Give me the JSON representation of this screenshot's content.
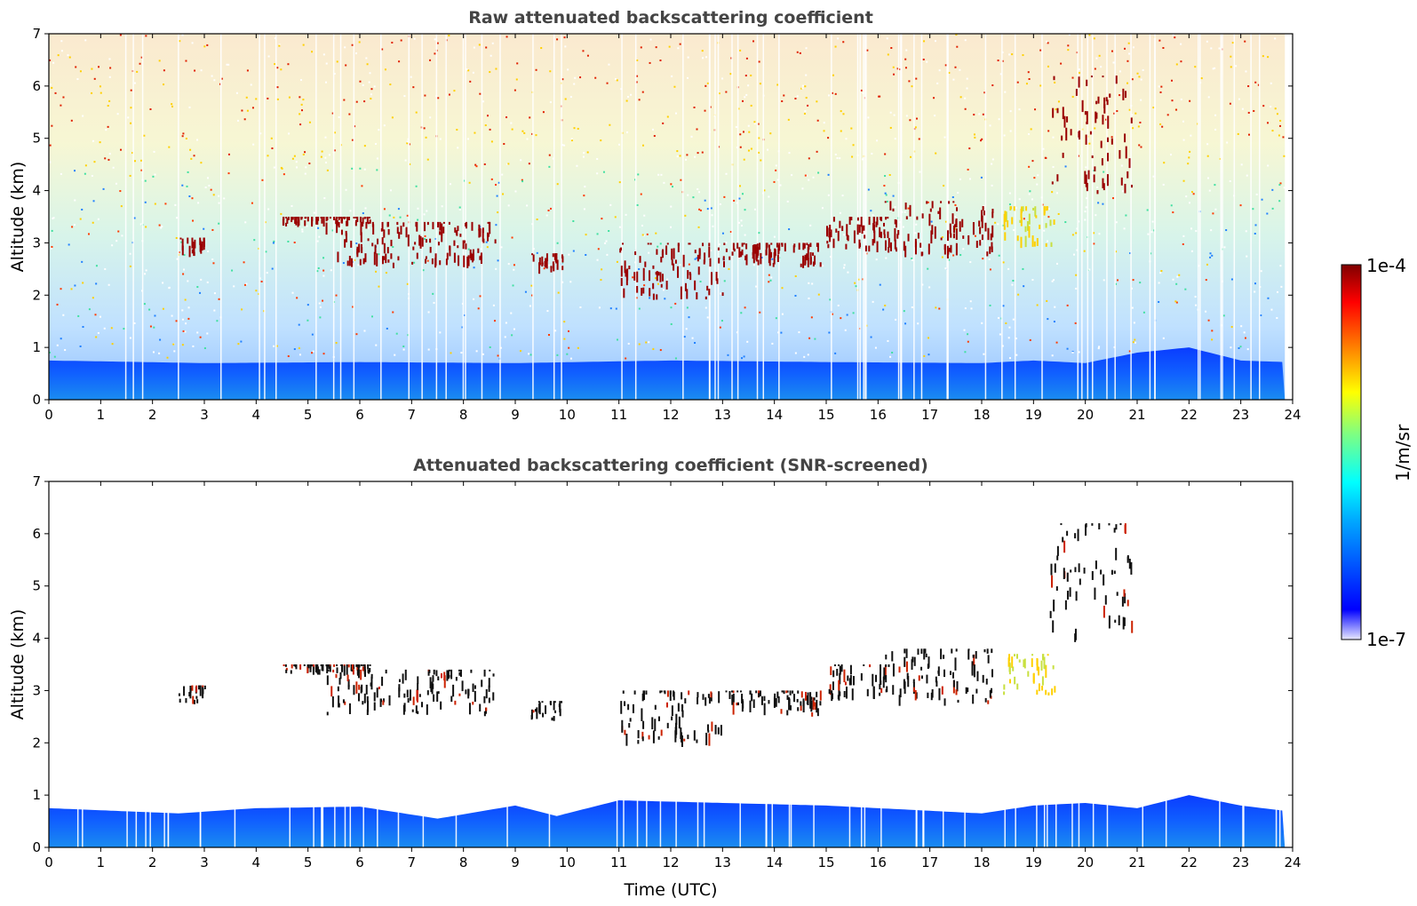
{
  "chart_data": [
    {
      "type": "heatmap",
      "title": "Raw attenuated backscattering coefficient",
      "xlabel": "",
      "ylabel": "Altitude (km)",
      "xlim": [
        0,
        24
      ],
      "ylim": [
        0,
        7
      ],
      "x_ticks": [
        "0",
        "1",
        "2",
        "3",
        "4",
        "5",
        "6",
        "7",
        "8",
        "9",
        "10",
        "11",
        "12",
        "13",
        "14",
        "15",
        "16",
        "17",
        "18",
        "19",
        "20",
        "21",
        "22",
        "23",
        "24"
      ],
      "y_ticks": [
        "0",
        "1",
        "2",
        "3",
        "4",
        "5",
        "6",
        "7"
      ],
      "data_end_time": 23.85,
      "boundary_layer_top_km": [
        [
          0,
          0.75
        ],
        [
          3,
          0.7
        ],
        [
          6,
          0.72
        ],
        [
          9,
          0.7
        ],
        [
          12,
          0.75
        ],
        [
          15,
          0.72
        ],
        [
          18,
          0.7
        ],
        [
          19,
          0.75
        ],
        [
          20,
          0.7
        ],
        [
          21,
          0.9
        ],
        [
          22,
          1.0
        ],
        [
          23,
          0.75
        ],
        [
          23.85,
          0.72
        ]
      ],
      "cloud_segments": [
        {
          "x0": 2.5,
          "x1": 3.0,
          "y0": 2.7,
          "y1": 3.1
        },
        {
          "x0": 4.5,
          "x1": 6.2,
          "y0": 3.3,
          "y1": 3.5
        },
        {
          "x0": 5.3,
          "x1": 8.6,
          "y0": 2.5,
          "y1": 3.4
        },
        {
          "x0": 9.3,
          "x1": 9.9,
          "y0": 2.4,
          "y1": 2.8
        },
        {
          "x0": 11.0,
          "x1": 13.0,
          "y0": 1.9,
          "y1": 3.0
        },
        {
          "x0": 13.0,
          "x1": 14.9,
          "y0": 2.5,
          "y1": 3.0
        },
        {
          "x0": 15.0,
          "x1": 16.2,
          "y0": 2.8,
          "y1": 3.5
        },
        {
          "x0": 16.0,
          "x1": 18.2,
          "y0": 2.7,
          "y1": 3.8
        },
        {
          "x0": 18.4,
          "x1": 19.4,
          "y0": 2.9,
          "y1": 3.7
        },
        {
          "x0": 19.3,
          "x1": 20.9,
          "y0": 3.9,
          "y1": 6.2
        }
      ]
    },
    {
      "type": "heatmap",
      "title": "Attenuated backscattering coefficient (SNR-screened)",
      "xlabel": "Time (UTC)",
      "ylabel": "Altitude (km)",
      "xlim": [
        0,
        24
      ],
      "ylim": [
        0,
        7
      ],
      "x_ticks": [
        "0",
        "1",
        "2",
        "3",
        "4",
        "5",
        "6",
        "7",
        "8",
        "9",
        "10",
        "11",
        "12",
        "13",
        "14",
        "15",
        "16",
        "17",
        "18",
        "19",
        "20",
        "21",
        "22",
        "23",
        "24"
      ],
      "y_ticks": [
        "0",
        "1",
        "2",
        "3",
        "4",
        "5",
        "6",
        "7"
      ],
      "data_end_time": 23.85,
      "boundary_layer_top_km": [
        [
          0,
          0.75
        ],
        [
          2.5,
          0.65
        ],
        [
          4,
          0.75
        ],
        [
          6,
          0.78
        ],
        [
          7.5,
          0.55
        ],
        [
          9,
          0.8
        ],
        [
          9.8,
          0.6
        ],
        [
          11,
          0.9
        ],
        [
          13,
          0.85
        ],
        [
          15,
          0.8
        ],
        [
          17,
          0.7
        ],
        [
          18,
          0.65
        ],
        [
          19,
          0.8
        ],
        [
          20,
          0.85
        ],
        [
          21,
          0.75
        ],
        [
          22,
          1.0
        ],
        [
          23,
          0.8
        ],
        [
          23.85,
          0.7
        ]
      ],
      "cloud_segments": [
        {
          "x0": 2.5,
          "x1": 3.0,
          "y0": 2.7,
          "y1": 3.1
        },
        {
          "x0": 4.5,
          "x1": 6.2,
          "y0": 3.3,
          "y1": 3.5
        },
        {
          "x0": 5.3,
          "x1": 8.6,
          "y0": 2.5,
          "y1": 3.4
        },
        {
          "x0": 9.3,
          "x1": 9.9,
          "y0": 2.4,
          "y1": 2.8
        },
        {
          "x0": 11.0,
          "x1": 13.0,
          "y0": 1.9,
          "y1": 3.0
        },
        {
          "x0": 13.0,
          "x1": 14.9,
          "y0": 2.5,
          "y1": 3.0
        },
        {
          "x0": 15.0,
          "x1": 16.2,
          "y0": 2.8,
          "y1": 3.5
        },
        {
          "x0": 16.0,
          "x1": 18.2,
          "y0": 2.7,
          "y1": 3.8
        },
        {
          "x0": 18.4,
          "x1": 19.4,
          "y0": 2.9,
          "y1": 3.7
        },
        {
          "x0": 19.3,
          "x1": 20.9,
          "y0": 3.9,
          "y1": 6.2
        }
      ]
    }
  ],
  "colorbar": {
    "label": "1/m/sr",
    "max_label": "1e-4",
    "min_label": "1e-7",
    "scale": "log",
    "colormap": "jet",
    "colors": [
      "#e8e8ff",
      "#0000ff",
      "#00aaff",
      "#00ffff",
      "#80ff80",
      "#ffff00",
      "#ff8000",
      "#ff0000",
      "#800000"
    ]
  }
}
